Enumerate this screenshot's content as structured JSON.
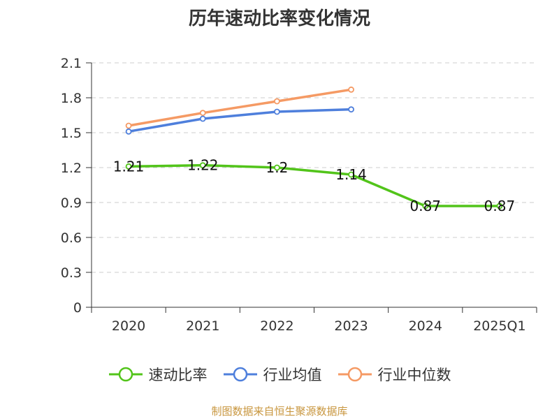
{
  "chart_data": {
    "type": "line",
    "title": "历年速动比率变化情况",
    "categories": [
      "2020",
      "2021",
      "2022",
      "2023",
      "2024",
      "2025Q1"
    ],
    "ylim": [
      0,
      2.1
    ],
    "yticks": [
      "0",
      "0.3",
      "0.6",
      "0.9",
      "1.2",
      "1.5",
      "1.8",
      "2.1"
    ],
    "grid": true,
    "legend_position": "bottom",
    "series": [
      {
        "name": "速动比率",
        "color": "#52c41a",
        "values": [
          1.21,
          1.22,
          1.2,
          1.14,
          0.87,
          0.87
        ],
        "labels": [
          "1.21",
          "1.22",
          "1.2",
          "1.14",
          "0.87",
          "0.87"
        ]
      },
      {
        "name": "行业均值",
        "color": "#4e7fdc",
        "values": [
          1.51,
          1.62,
          1.68,
          1.7,
          null,
          null
        ]
      },
      {
        "name": "行业中位数",
        "color": "#f59a64",
        "values": [
          1.56,
          1.67,
          1.77,
          1.87,
          null,
          null
        ]
      }
    ]
  },
  "source_note": "制图数据来自恒生聚源数据库",
  "source_note_color": "#c8963e"
}
